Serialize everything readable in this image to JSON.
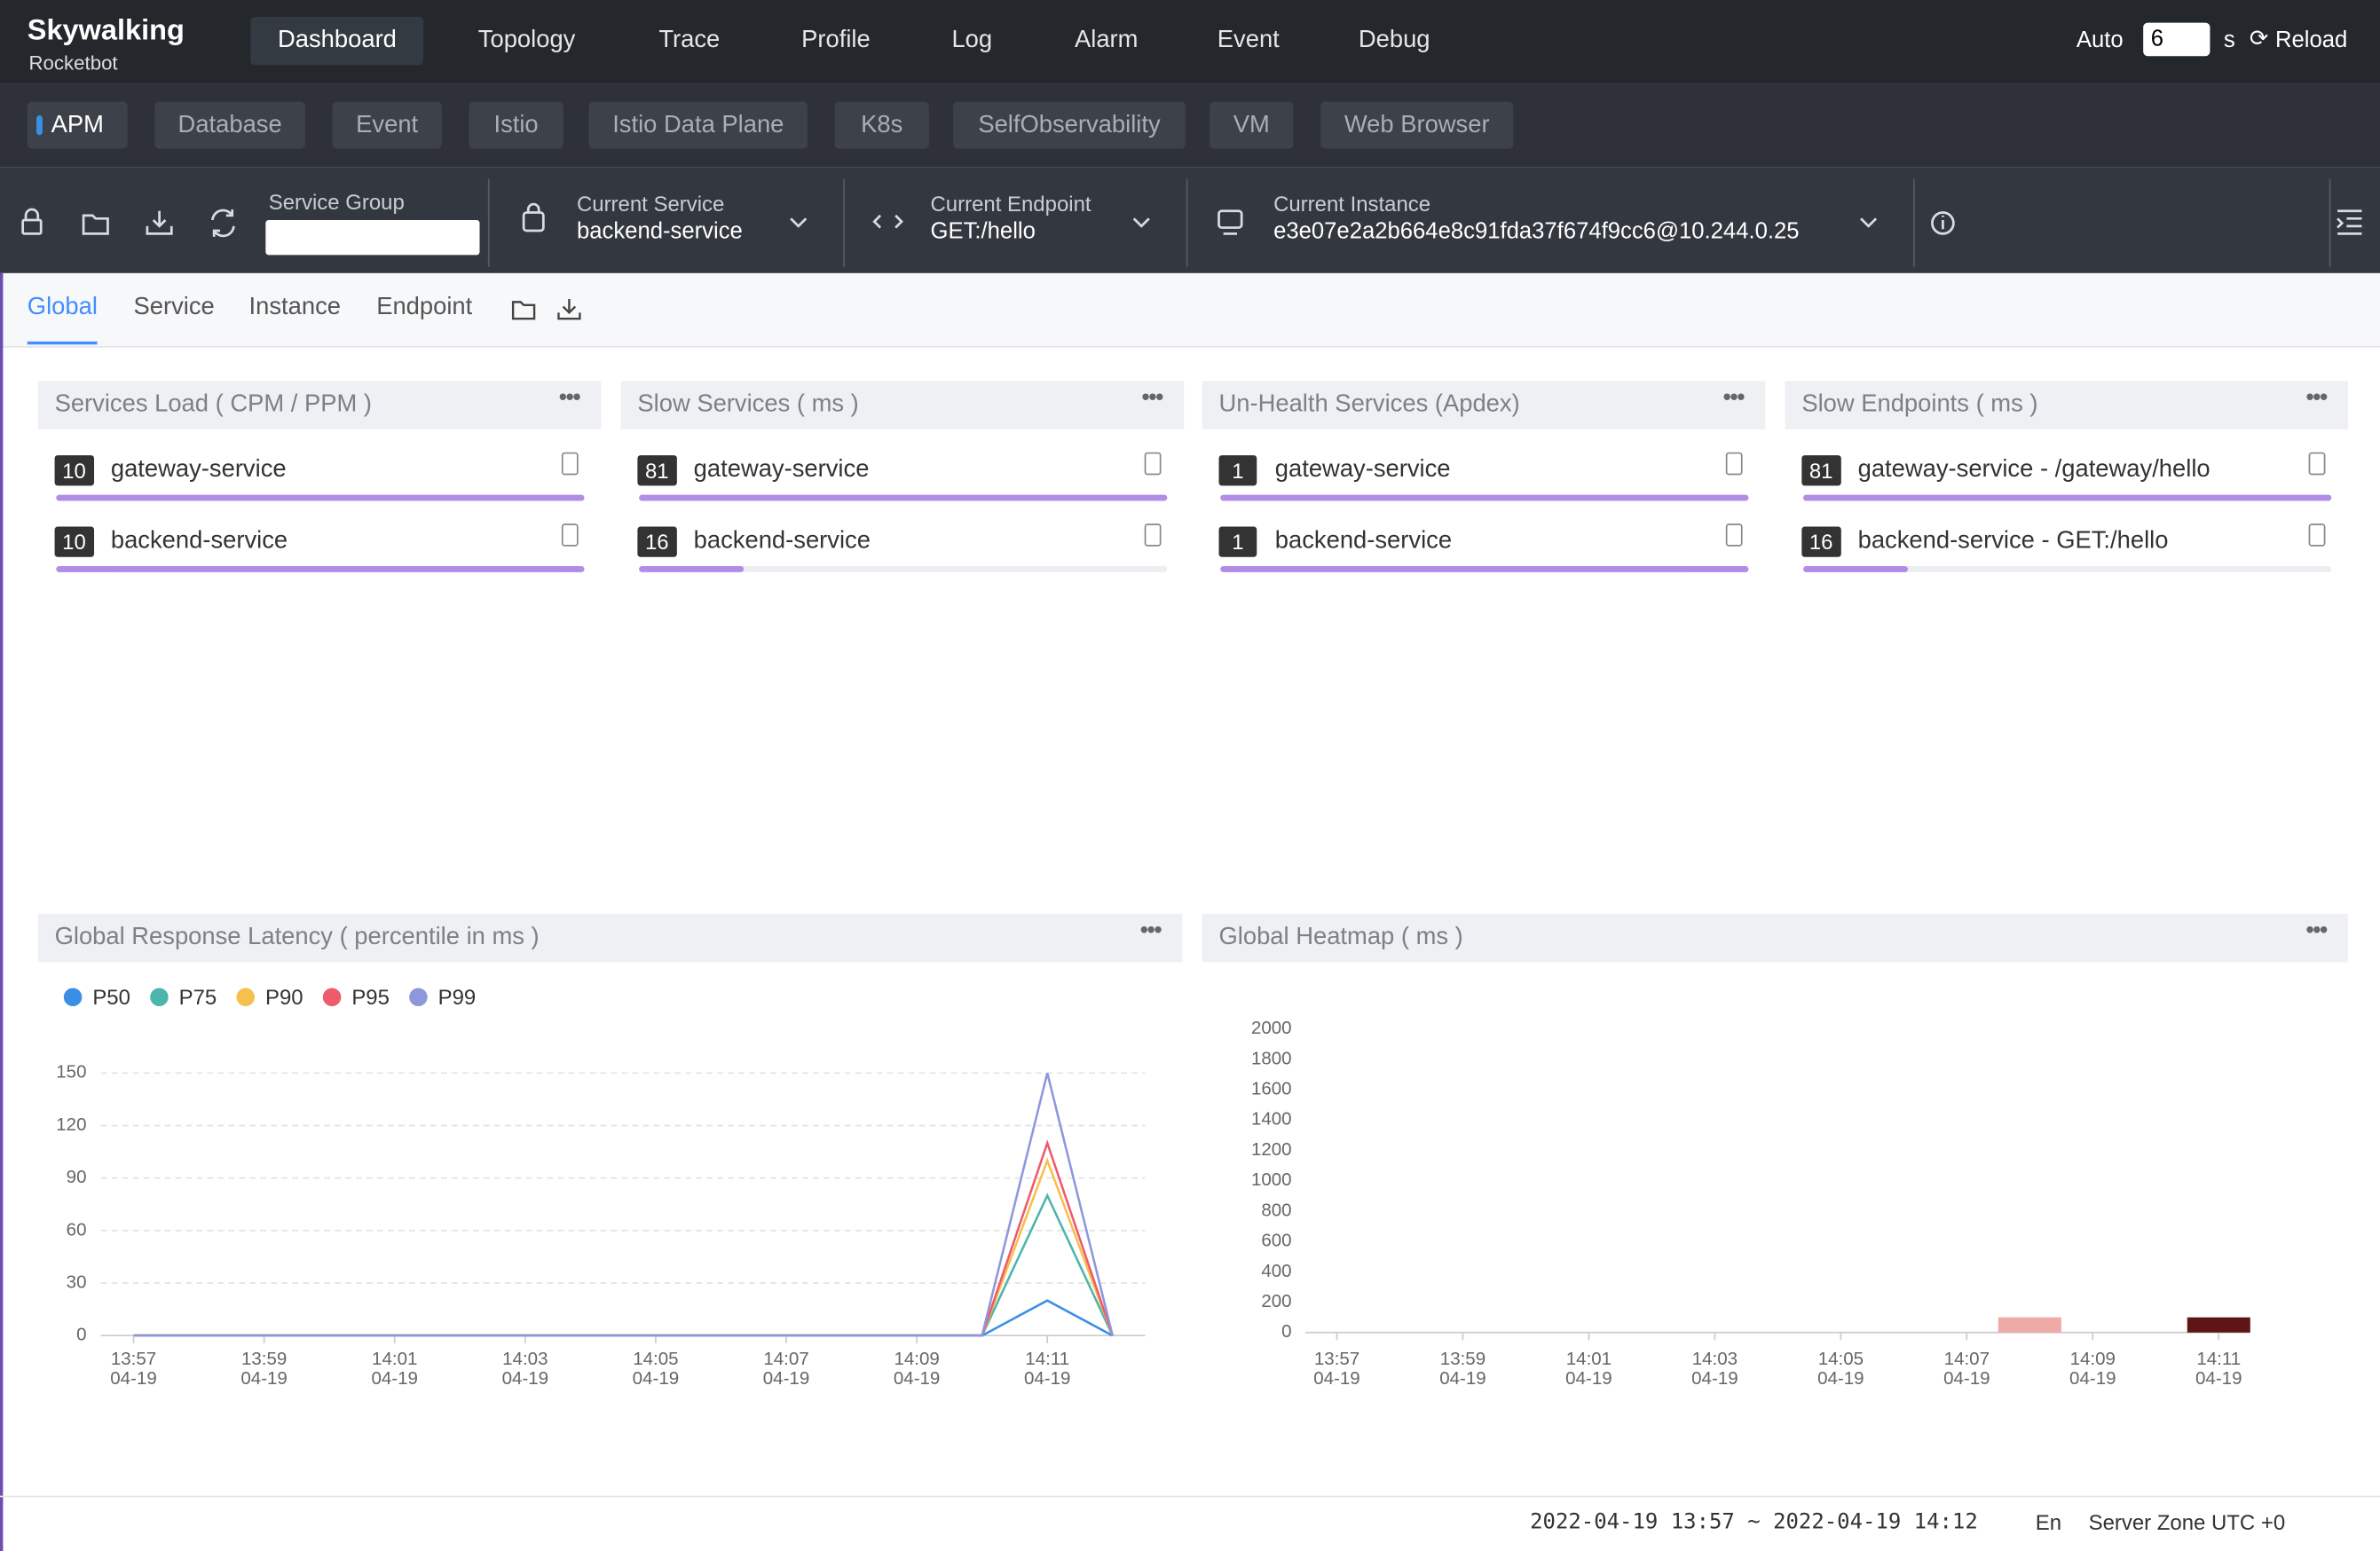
{
  "header": {
    "logo": "Skywalking",
    "logo_sub": "Rocketbot",
    "nav": [
      "Dashboard",
      "Topology",
      "Trace",
      "Profile",
      "Log",
      "Alarm",
      "Event",
      "Debug"
    ],
    "auto": "Auto",
    "interval": "6",
    "interval_unit": "s",
    "reload": "Reload"
  },
  "layers": [
    "APM",
    "Database",
    "Event",
    "Istio",
    "Istio Data Plane",
    "K8s",
    "SelfObservability",
    "VM",
    "Web Browser"
  ],
  "selectors": {
    "service_group": "Service Group",
    "current_service": {
      "label": "Current Service",
      "value": "backend-service"
    },
    "current_endpoint": {
      "label": "Current Endpoint",
      "value": "GET:/hello"
    },
    "current_instance": {
      "label": "Current Instance",
      "value": "e3e07e2a2b664e8c91fda37f674f9cc6@10.244.0.25"
    }
  },
  "dashboard_tabs": [
    "Global",
    "Service",
    "Instance",
    "Endpoint"
  ],
  "widgets": [
    {
      "title": "Services Load ( CPM / PPM )",
      "items": [
        {
          "value": 10,
          "name": "gateway-service"
        },
        {
          "value": 10,
          "name": "backend-service"
        }
      ]
    },
    {
      "title": "Slow Services ( ms )",
      "items": [
        {
          "value": 81,
          "name": "gateway-service"
        },
        {
          "value": 16,
          "name": "backend-service"
        }
      ]
    },
    {
      "title": "Un-Health Services (Apdex)",
      "items": [
        {
          "value": 1,
          "name": "gateway-service"
        },
        {
          "value": 1,
          "name": "backend-service"
        }
      ]
    },
    {
      "title": "Slow Endpoints ( ms )",
      "items": [
        {
          "value": 81,
          "name": "gateway-service - /gateway/hello"
        },
        {
          "value": 16,
          "name": "backend-service - GET:/hello"
        }
      ]
    }
  ],
  "chart_data": [
    {
      "type": "line",
      "title": "Global Response Latency ( percentile in ms )",
      "categories": [
        [
          "13:57",
          "04-19"
        ],
        null,
        [
          "13:59",
          "04-19"
        ],
        null,
        [
          "14:01",
          "04-19"
        ],
        null,
        [
          "14:03",
          "04-19"
        ],
        null,
        [
          "14:05",
          "04-19"
        ],
        null,
        [
          "14:07",
          "04-19"
        ],
        null,
        [
          "14:09",
          "04-19"
        ],
        null,
        [
          "14:11",
          "04-19"
        ],
        null
      ],
      "series": [
        {
          "name": "P50",
          "color": "#3a8ee6",
          "values": [
            0,
            0,
            0,
            0,
            0,
            0,
            0,
            0,
            0,
            0,
            0,
            0,
            0,
            0,
            20,
            0
          ]
        },
        {
          "name": "P75",
          "color": "#4db6ac",
          "values": [
            0,
            0,
            0,
            0,
            0,
            0,
            0,
            0,
            0,
            0,
            0,
            0,
            0,
            0,
            80,
            0
          ]
        },
        {
          "name": "P90",
          "color": "#f6c04e",
          "values": [
            0,
            0,
            0,
            0,
            0,
            0,
            0,
            0,
            0,
            0,
            0,
            0,
            0,
            0,
            100,
            0
          ]
        },
        {
          "name": "P95",
          "color": "#ee5b6b",
          "values": [
            0,
            0,
            0,
            0,
            0,
            0,
            0,
            0,
            0,
            0,
            0,
            0,
            0,
            0,
            110,
            0
          ]
        },
        {
          "name": "P99",
          "color": "#8f97dc",
          "values": [
            0,
            0,
            0,
            0,
            0,
            0,
            0,
            0,
            0,
            0,
            0,
            0,
            0,
            0,
            150,
            0
          ]
        }
      ],
      "ylim": [
        0,
        150
      ],
      "yticks": [
        0,
        30,
        60,
        90,
        120,
        150
      ],
      "grid": true,
      "legend": "top-left"
    },
    {
      "type": "heatmap",
      "title": "Global Heatmap ( ms )",
      "categories": [
        [
          "13:57",
          "04-19"
        ],
        null,
        [
          "13:59",
          "04-19"
        ],
        null,
        [
          "14:01",
          "04-19"
        ],
        null,
        [
          "14:03",
          "04-19"
        ],
        null,
        [
          "14:05",
          "04-19"
        ],
        null,
        [
          "14:07",
          "04-19"
        ],
        null,
        [
          "14:09",
          "04-19"
        ],
        null,
        [
          "14:11",
          "04-19"
        ]
      ],
      "ylim": [
        0,
        2000
      ],
      "yticks": [
        0,
        200,
        400,
        600,
        800,
        1000,
        1200,
        1400,
        1600,
        1800,
        2000
      ],
      "cells": [
        {
          "x": 11,
          "y": [
            0,
            100
          ],
          "count": 1,
          "color": "#efaaa8"
        },
        {
          "x": 14,
          "y": [
            0,
            100
          ],
          "count": 5,
          "color": "#5e1515"
        }
      ]
    }
  ],
  "footer": {
    "time_range": "2022-04-19 13:57 ~ 2022-04-19 14:12",
    "language": "En",
    "server_zone": "Server Zone UTC +0"
  }
}
